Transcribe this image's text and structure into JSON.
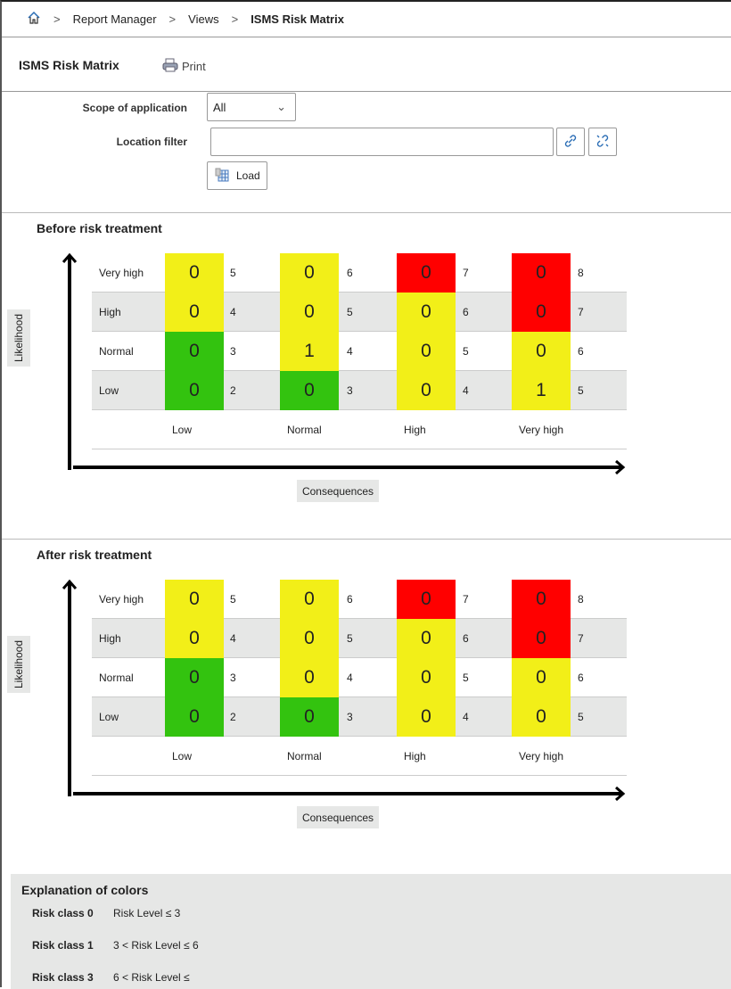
{
  "breadcrumb": {
    "items": [
      "Report Manager",
      "Views",
      "ISMS Risk Matrix"
    ]
  },
  "header": {
    "title": "ISMS Risk Matrix",
    "print": "Print"
  },
  "filters": {
    "scope_label": "Scope of application",
    "scope_value": "All",
    "location_label": "Location filter",
    "location_value": "",
    "load": "Load"
  },
  "axes": {
    "likelihood": "Likelihood",
    "consequences": "Consequences",
    "x_labels": [
      "Low",
      "Normal",
      "High",
      "Very high"
    ]
  },
  "colors": {
    "y": "#f2ef18",
    "r": "#ff0000",
    "g": "#33c30f"
  },
  "matrices": [
    {
      "title": "Before risk treatment",
      "rows": [
        {
          "label": "Very high",
          "cells": [
            [
              "0",
              "5",
              "y"
            ],
            [
              "0",
              "6",
              "y"
            ],
            [
              "0",
              "7",
              "r"
            ],
            [
              "0",
              "8",
              "r"
            ]
          ]
        },
        {
          "label": "High",
          "cells": [
            [
              "0",
              "4",
              "y"
            ],
            [
              "0",
              "5",
              "y"
            ],
            [
              "0",
              "6",
              "y"
            ],
            [
              "0",
              "7",
              "r"
            ]
          ]
        },
        {
          "label": "Normal",
          "cells": [
            [
              "0",
              "3",
              "g"
            ],
            [
              "1",
              "4",
              "y"
            ],
            [
              "0",
              "5",
              "y"
            ],
            [
              "0",
              "6",
              "y"
            ]
          ]
        },
        {
          "label": "Low",
          "cells": [
            [
              "0",
              "2",
              "g"
            ],
            [
              "0",
              "3",
              "g"
            ],
            [
              "0",
              "4",
              "y"
            ],
            [
              "1",
              "5",
              "y"
            ]
          ]
        }
      ]
    },
    {
      "title": "After risk treatment",
      "rows": [
        {
          "label": "Very high",
          "cells": [
            [
              "0",
              "5",
              "y"
            ],
            [
              "0",
              "6",
              "y"
            ],
            [
              "0",
              "7",
              "r"
            ],
            [
              "0",
              "8",
              "r"
            ]
          ]
        },
        {
          "label": "High",
          "cells": [
            [
              "0",
              "4",
              "y"
            ],
            [
              "0",
              "5",
              "y"
            ],
            [
              "0",
              "6",
              "y"
            ],
            [
              "0",
              "7",
              "r"
            ]
          ]
        },
        {
          "label": "Normal",
          "cells": [
            [
              "0",
              "3",
              "g"
            ],
            [
              "0",
              "4",
              "y"
            ],
            [
              "0",
              "5",
              "y"
            ],
            [
              "0",
              "6",
              "y"
            ]
          ]
        },
        {
          "label": "Low",
          "cells": [
            [
              "0",
              "2",
              "g"
            ],
            [
              "0",
              "3",
              "g"
            ],
            [
              "0",
              "4",
              "y"
            ],
            [
              "0",
              "5",
              "y"
            ]
          ]
        }
      ]
    }
  ],
  "legend": {
    "title": "Explanation of colors",
    "items": [
      {
        "cls": "Risk class 0",
        "desc": "Risk Level ≤ 3"
      },
      {
        "cls": "Risk class 1",
        "desc": "3 < Risk Level ≤ 6"
      },
      {
        "cls": "Risk class 3",
        "desc": "6 < Risk Level ≤"
      }
    ]
  }
}
